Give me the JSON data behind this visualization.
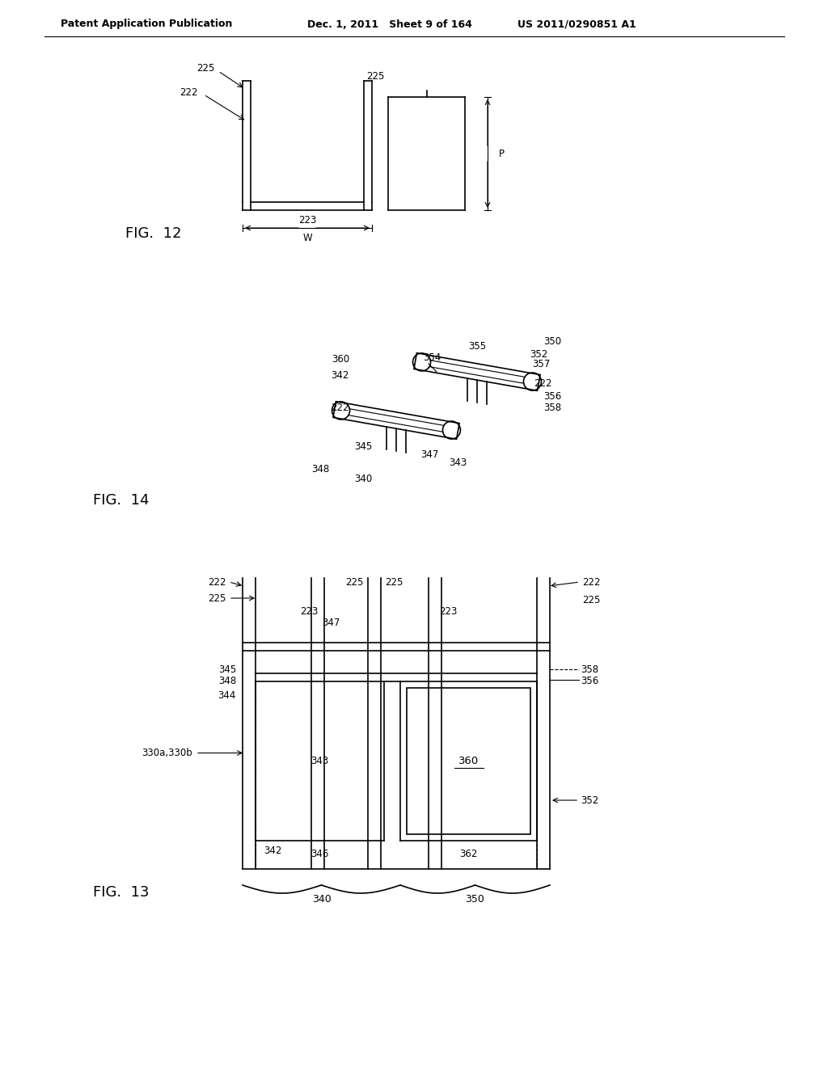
{
  "background_color": "#ffffff",
  "line_color": "#000000",
  "header_left": "Patent Application Publication",
  "header_center": "Dec. 1, 2011   Sheet 9 of 164",
  "header_right": "US 2011/0290851 A1",
  "fig12_label": "FIG.  12",
  "fig14_label": "FIG.  14",
  "fig13_label": "FIG.  13"
}
